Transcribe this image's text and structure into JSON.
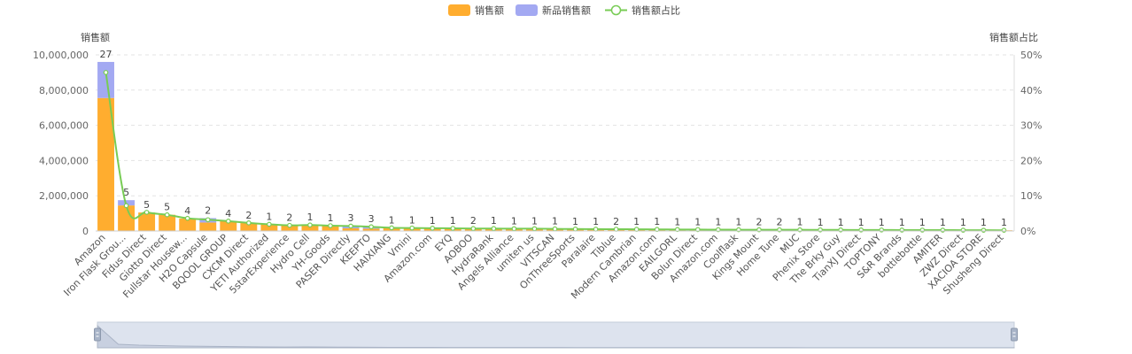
{
  "chart_data": {
    "type": "bar",
    "legend": {
      "position": "top-center",
      "items": [
        {
          "name": "销售额",
          "kind": "bar",
          "color": "#FFAD2F"
        },
        {
          "name": "新品销售额",
          "kind": "bar",
          "color": "#A3A9F2"
        },
        {
          "name": "销售额占比",
          "kind": "line",
          "color": "#78CC55"
        }
      ]
    },
    "y_left": {
      "label": "销售额",
      "range": [
        0,
        10000000
      ],
      "ticks": [
        "0",
        "2,000,000",
        "4,000,000",
        "6,000,000",
        "8,000,000",
        "10,000,000"
      ],
      "tick_values": [
        0,
        2000000,
        4000000,
        6000000,
        8000000,
        10000000
      ]
    },
    "y_right": {
      "label": "销售额占比",
      "range": [
        0,
        50
      ],
      "ticks": [
        "0%",
        "10%",
        "20%",
        "30%",
        "40%",
        "50%"
      ],
      "tick_values": [
        0,
        10,
        20,
        30,
        40,
        50
      ]
    },
    "grid": true,
    "categories": [
      "Amazon",
      "Iron Flask Grou...",
      "Fidus Direct",
      "Giotto Direct",
      "Fullstar Housew...",
      "H2O Capsule",
      "BQOOL GROUP",
      "CXCM Direct",
      "YETI Authorized",
      "5starExperience",
      "Hydro Cell",
      "YH-Goods",
      "PASER Directly",
      "KEEPTO",
      "HAIXIANG",
      "Vmini",
      "Amazon.com",
      "EYQ",
      "AOBOO",
      "HydraRank",
      "Angels Alliance",
      "umiten us",
      "VITSCAN",
      "OnThreeSports",
      "Paralaire",
      "Tiblue",
      "Modern Cambrian",
      "Amazon.com",
      "EAILGORL",
      "Bolun Direct",
      "Amazon.com",
      "Coolflask",
      "Kings Mount",
      "Home Tune",
      "MUC",
      "Phenix Store",
      "The Brky Guy",
      "TianXJ Direct",
      "TOPTONY",
      "S&R Brands",
      "bottlebottle",
      "AMITER",
      "ZWZ Direct",
      "XACIOA STORE",
      "Shusheng Direct"
    ],
    "series": [
      {
        "name": "销售额",
        "type": "bar",
        "stack": "total",
        "values": [
          7550000,
          1450000,
          1050000,
          920000,
          700000,
          480000,
          560000,
          450000,
          380000,
          320000,
          350000,
          300000,
          150000,
          130000,
          180000,
          170000,
          160000,
          150000,
          140000,
          140000,
          130000,
          130000,
          120000,
          110000,
          105000,
          100000,
          95000,
          90000,
          85000,
          80000,
          75000,
          72000,
          70000,
          68000,
          65000,
          62000,
          60000,
          58000,
          55000,
          52000,
          50000,
          48000,
          45000,
          42000,
          40000
        ]
      },
      {
        "name": "新品销售额",
        "type": "bar",
        "stack": "total",
        "values": [
          2050000,
          300000,
          0,
          0,
          0,
          250000,
          0,
          0,
          0,
          0,
          0,
          0,
          150000,
          120000,
          0,
          0,
          0,
          0,
          0,
          0,
          0,
          0,
          0,
          0,
          0,
          0,
          0,
          0,
          0,
          0,
          0,
          0,
          0,
          0,
          0,
          0,
          0,
          0,
          0,
          0,
          0,
          0,
          0,
          0,
          0
        ]
      },
      {
        "name": "销售额占比",
        "type": "line",
        "axis": "right",
        "values": [
          45.0,
          7.2,
          5.3,
          4.6,
          3.6,
          3.2,
          2.8,
          2.3,
          1.9,
          1.6,
          1.7,
          1.5,
          1.4,
          1.2,
          0.9,
          0.85,
          0.8,
          0.75,
          0.7,
          0.7,
          0.65,
          0.65,
          0.6,
          0.55,
          0.52,
          0.5,
          0.48,
          0.45,
          0.42,
          0.4,
          0.38,
          0.36,
          0.35,
          0.34,
          0.33,
          0.31,
          0.3,
          0.29,
          0.28,
          0.26,
          0.25,
          0.24,
          0.23,
          0.21,
          0.2
        ]
      }
    ],
    "bar_labels": [
      27,
      5,
      5,
      5,
      4,
      2,
      4,
      2,
      1,
      2,
      1,
      1,
      3,
      3,
      1,
      1,
      1,
      1,
      2,
      1,
      1,
      1,
      1,
      1,
      1,
      2,
      1,
      1,
      1,
      1,
      1,
      1,
      2,
      2,
      1,
      1,
      1,
      1,
      1,
      1,
      1,
      1,
      1,
      1,
      1
    ]
  }
}
